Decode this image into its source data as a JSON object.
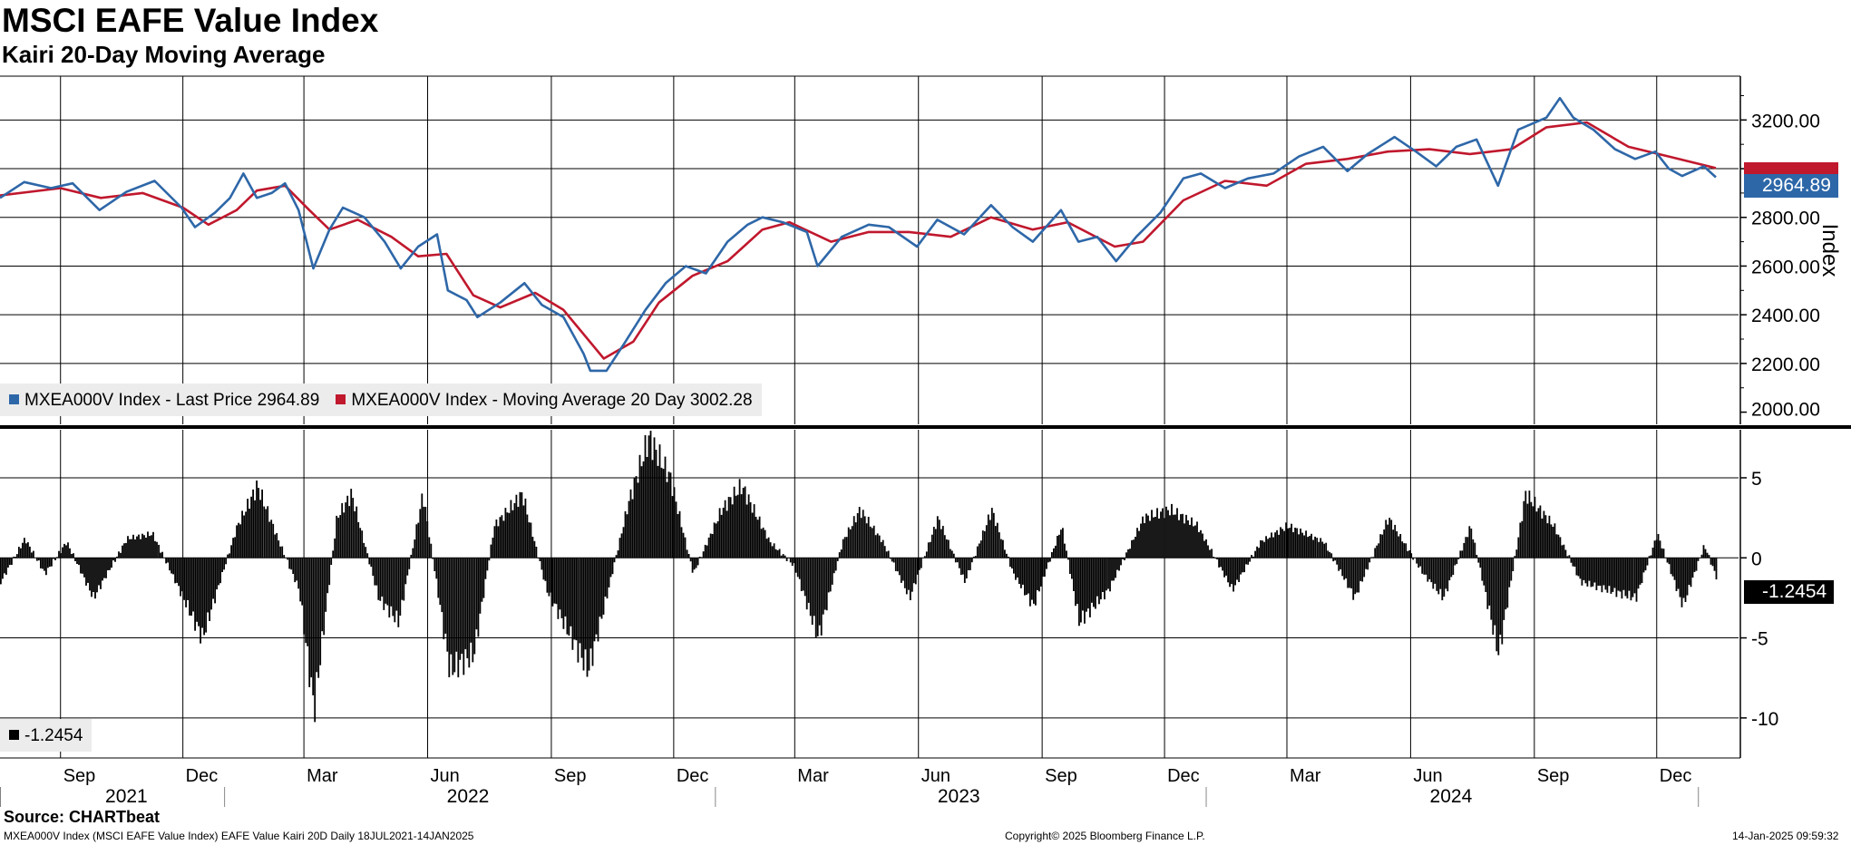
{
  "header": {
    "title": "MSCI EAFE Value Index",
    "subtitle": "Kairi 20-Day Moving Average"
  },
  "colors": {
    "price": "#2e67a8",
    "moving_average": "#c0182d",
    "kairi": "#000000",
    "grid": "#000000",
    "legend_bg": "#ececec"
  },
  "legend_top": {
    "price_label": "MXEA000V Index - Last Price 2964.89",
    "ma_label": "MXEA000V Index - Moving Average 20 Day 3002.28"
  },
  "legend_bottom": {
    "kairi_label": "-1.2454"
  },
  "tags": {
    "price": "2964.89",
    "ma": "3002.28",
    "kairi": "-1.2454"
  },
  "axis": {
    "right_label_top": "Index",
    "top_ticks": [
      "3200.00",
      "3000.00",
      "2800.00",
      "2600.00",
      "2400.00",
      "2200.00",
      "2000.00"
    ],
    "bottom_ticks": [
      "5",
      "0",
      "-5",
      "-10"
    ],
    "month_ticks": [
      "Sep",
      "Dec",
      "Mar",
      "Jun",
      "Sep",
      "Dec",
      "Mar",
      "Jun",
      "Sep",
      "Dec",
      "Mar",
      "Jun",
      "Sep",
      "Dec"
    ],
    "years": [
      "2021",
      "2022",
      "2023",
      "2024"
    ]
  },
  "footer": {
    "source": "Source: CHARTbeat",
    "left": "MXEA000V Index (MSCI EAFE Value Index) EAFE Value Kairi 20D  Daily 18JUL2021-14JAN2025",
    "center": "Copyright© 2025 Bloomberg Finance L.P.",
    "right": "14-Jan-2025 09:59:32"
  },
  "chart_data": [
    {
      "type": "line",
      "title": "MSCI EAFE Value Index",
      "ylabel": "Index",
      "ylim": [
        1950,
        3380
      ],
      "x_range": [
        "2021-07-18",
        "2025-01-14"
      ],
      "series": [
        {
          "name": "MXEA000V Index - Last Price",
          "points": [
            [
              "2021-07-18",
              2880
            ],
            [
              "2021-08-05",
              2945
            ],
            [
              "2021-08-25",
              2920
            ],
            [
              "2021-09-10",
              2940
            ],
            [
              "2021-09-30",
              2830
            ],
            [
              "2021-10-20",
              2905
            ],
            [
              "2021-11-10",
              2950
            ],
            [
              "2021-11-30",
              2840
            ],
            [
              "2021-12-10",
              2760
            ],
            [
              "2021-12-25",
              2820
            ],
            [
              "2022-01-05",
              2880
            ],
            [
              "2022-01-15",
              2980
            ],
            [
              "2022-01-25",
              2880
            ],
            [
              "2022-02-05",
              2900
            ],
            [
              "2022-02-15",
              2940
            ],
            [
              "2022-02-25",
              2830
            ],
            [
              "2022-03-08",
              2590
            ],
            [
              "2022-03-20",
              2750
            ],
            [
              "2022-03-30",
              2840
            ],
            [
              "2022-04-15",
              2800
            ],
            [
              "2022-04-30",
              2700
            ],
            [
              "2022-05-12",
              2590
            ],
            [
              "2022-05-25",
              2680
            ],
            [
              "2022-06-08",
              2730
            ],
            [
              "2022-06-16",
              2500
            ],
            [
              "2022-06-30",
              2460
            ],
            [
              "2022-07-08",
              2390
            ],
            [
              "2022-07-25",
              2450
            ],
            [
              "2022-08-12",
              2530
            ],
            [
              "2022-08-25",
              2440
            ],
            [
              "2022-09-10",
              2390
            ],
            [
              "2022-09-25",
              2240
            ],
            [
              "2022-09-30",
              2170
            ],
            [
              "2022-10-12",
              2170
            ],
            [
              "2022-10-25",
              2280
            ],
            [
              "2022-11-10",
              2420
            ],
            [
              "2022-11-25",
              2530
            ],
            [
              "2022-12-10",
              2600
            ],
            [
              "2022-12-25",
              2570
            ],
            [
              "2023-01-10",
              2700
            ],
            [
              "2023-01-25",
              2770
            ],
            [
              "2023-02-05",
              2800
            ],
            [
              "2023-02-20",
              2780
            ],
            [
              "2023-03-10",
              2740
            ],
            [
              "2023-03-18",
              2600
            ],
            [
              "2023-04-05",
              2720
            ],
            [
              "2023-04-25",
              2770
            ],
            [
              "2023-05-10",
              2760
            ],
            [
              "2023-05-31",
              2680
            ],
            [
              "2023-06-15",
              2790
            ],
            [
              "2023-07-05",
              2730
            ],
            [
              "2023-07-25",
              2850
            ],
            [
              "2023-08-10",
              2760
            ],
            [
              "2023-08-25",
              2700
            ],
            [
              "2023-09-15",
              2830
            ],
            [
              "2023-09-28",
              2700
            ],
            [
              "2023-10-12",
              2720
            ],
            [
              "2023-10-26",
              2620
            ],
            [
              "2023-11-10",
              2720
            ],
            [
              "2023-11-28",
              2820
            ],
            [
              "2023-12-15",
              2960
            ],
            [
              "2023-12-28",
              2980
            ],
            [
              "2024-01-15",
              2920
            ],
            [
              "2024-02-01",
              2960
            ],
            [
              "2024-02-20",
              2980
            ],
            [
              "2024-03-10",
              3050
            ],
            [
              "2024-03-28",
              3090
            ],
            [
              "2024-04-15",
              2990
            ],
            [
              "2024-04-30",
              3060
            ],
            [
              "2024-05-20",
              3130
            ],
            [
              "2024-06-05",
              3070
            ],
            [
              "2024-06-20",
              3010
            ],
            [
              "2024-07-05",
              3090
            ],
            [
              "2024-07-20",
              3120
            ],
            [
              "2024-08-05",
              2930
            ],
            [
              "2024-08-20",
              3160
            ],
            [
              "2024-09-10",
              3210
            ],
            [
              "2024-09-20",
              3290
            ],
            [
              "2024-09-30",
              3210
            ],
            [
              "2024-10-15",
              3160
            ],
            [
              "2024-10-31",
              3080
            ],
            [
              "2024-11-15",
              3040
            ],
            [
              "2024-11-30",
              3070
            ],
            [
              "2024-12-10",
              3000
            ],
            [
              "2024-12-20",
              2970
            ],
            [
              "2025-01-05",
              3010
            ],
            [
              "2025-01-14",
              2964.89
            ]
          ]
        },
        {
          "name": "MXEA000V Index - Moving Average 20 Day",
          "points": [
            [
              "2021-07-18",
              2890
            ],
            [
              "2021-09-01",
              2920
            ],
            [
              "2021-10-01",
              2880
            ],
            [
              "2021-11-01",
              2900
            ],
            [
              "2021-12-01",
              2840
            ],
            [
              "2021-12-20",
              2770
            ],
            [
              "2022-01-10",
              2830
            ],
            [
              "2022-01-25",
              2910
            ],
            [
              "2022-02-15",
              2930
            ],
            [
              "2022-03-05",
              2830
            ],
            [
              "2022-03-20",
              2750
            ],
            [
              "2022-04-10",
              2790
            ],
            [
              "2022-05-05",
              2720
            ],
            [
              "2022-05-25",
              2640
            ],
            [
              "2022-06-15",
              2650
            ],
            [
              "2022-07-05",
              2480
            ],
            [
              "2022-07-25",
              2430
            ],
            [
              "2022-08-20",
              2490
            ],
            [
              "2022-09-10",
              2420
            ],
            [
              "2022-10-10",
              2220
            ],
            [
              "2022-11-01",
              2290
            ],
            [
              "2022-11-20",
              2450
            ],
            [
              "2022-12-15",
              2560
            ],
            [
              "2023-01-10",
              2620
            ],
            [
              "2023-02-05",
              2750
            ],
            [
              "2023-02-25",
              2780
            ],
            [
              "2023-03-28",
              2700
            ],
            [
              "2023-04-25",
              2740
            ],
            [
              "2023-05-25",
              2740
            ],
            [
              "2023-06-25",
              2720
            ],
            [
              "2023-07-25",
              2800
            ],
            [
              "2023-08-25",
              2750
            ],
            [
              "2023-09-20",
              2780
            ],
            [
              "2023-10-25",
              2680
            ],
            [
              "2023-11-15",
              2700
            ],
            [
              "2023-12-15",
              2870
            ],
            [
              "2024-01-15",
              2950
            ],
            [
              "2024-02-15",
              2930
            ],
            [
              "2024-03-15",
              3020
            ],
            [
              "2024-04-15",
              3040
            ],
            [
              "2024-05-15",
              3070
            ],
            [
              "2024-06-15",
              3080
            ],
            [
              "2024-07-15",
              3060
            ],
            [
              "2024-08-15",
              3080
            ],
            [
              "2024-09-10",
              3170
            ],
            [
              "2024-10-10",
              3190
            ],
            [
              "2024-11-10",
              3090
            ],
            [
              "2024-12-10",
              3050
            ],
            [
              "2025-01-14",
              3002.28
            ]
          ]
        }
      ]
    },
    {
      "type": "bar",
      "title": "Kairi 20-Day Moving Average",
      "ylim": [
        -12.5,
        8
      ],
      "x_range": [
        "2021-07-18",
        "2025-01-14"
      ],
      "series": [
        {
          "name": "Kairi 20D",
          "points": [
            [
              "2021-07-18",
              -1.5
            ],
            [
              "2021-08-05",
              1.2
            ],
            [
              "2021-08-20",
              -1.0
            ],
            [
              "2021-09-05",
              1.0
            ],
            [
              "2021-09-25",
              -2.5
            ],
            [
              "2021-10-20",
              1.2
            ],
            [
              "2021-11-08",
              1.5
            ],
            [
              "2021-11-28",
              -2.0
            ],
            [
              "2021-12-15",
              -5.0
            ],
            [
              "2022-01-10",
              2.0
            ],
            [
              "2022-01-25",
              4.5
            ],
            [
              "2022-02-10",
              1.0
            ],
            [
              "2022-02-25",
              -2.0
            ],
            [
              "2022-03-08",
              -9.5
            ],
            [
              "2022-03-25",
              2.5
            ],
            [
              "2022-04-05",
              4.0
            ],
            [
              "2022-04-25",
              -2.5
            ],
            [
              "2022-05-10",
              -4.0
            ],
            [
              "2022-05-28",
              4.0
            ],
            [
              "2022-06-17",
              -7.0
            ],
            [
              "2022-07-05",
              -6.0
            ],
            [
              "2022-07-20",
              2.0
            ],
            [
              "2022-08-10",
              4.0
            ],
            [
              "2022-08-28",
              -2.0
            ],
            [
              "2022-09-28",
              -7.0
            ],
            [
              "2022-10-10",
              -3.0
            ],
            [
              "2022-10-28",
              3.5
            ],
            [
              "2022-11-12",
              7.5
            ],
            [
              "2022-11-28",
              5.0
            ],
            [
              "2022-12-15",
              -1.0
            ],
            [
              "2023-01-05",
              3.0
            ],
            [
              "2023-01-20",
              4.5
            ],
            [
              "2023-02-10",
              1.0
            ],
            [
              "2023-02-28",
              -0.5
            ],
            [
              "2023-03-18",
              -5.0
            ],
            [
              "2023-04-05",
              1.0
            ],
            [
              "2023-04-18",
              3.0
            ],
            [
              "2023-05-05",
              1.0
            ],
            [
              "2023-05-25",
              -2.5
            ],
            [
              "2023-06-15",
              2.5
            ],
            [
              "2023-07-05",
              -1.5
            ],
            [
              "2023-07-25",
              3.0
            ],
            [
              "2023-08-10",
              -1.0
            ],
            [
              "2023-08-25",
              -3.0
            ],
            [
              "2023-09-15",
              2.0
            ],
            [
              "2023-09-28",
              -4.0
            ],
            [
              "2023-10-20",
              -2.0
            ],
            [
              "2023-11-15",
              2.5
            ],
            [
              "2023-12-05",
              3.0
            ],
            [
              "2023-12-25",
              2.0
            ],
            [
              "2024-01-20",
              -2.0
            ],
            [
              "2024-02-10",
              1.0
            ],
            [
              "2024-03-01",
              2.0
            ],
            [
              "2024-03-28",
              1.0
            ],
            [
              "2024-04-20",
              -2.5
            ],
            [
              "2024-05-15",
              2.5
            ],
            [
              "2024-06-10",
              -1.0
            ],
            [
              "2024-06-25",
              -2.5
            ],
            [
              "2024-07-15",
              2.0
            ],
            [
              "2024-08-05",
              -6.0
            ],
            [
              "2024-08-25",
              4.0
            ],
            [
              "2024-09-15",
              2.0
            ],
            [
              "2024-10-05",
              -1.5
            ],
            [
              "2024-10-25",
              -2.0
            ],
            [
              "2024-11-15",
              -2.5
            ],
            [
              "2024-12-01",
              1.5
            ],
            [
              "2024-12-20",
              -3.0
            ],
            [
              "2025-01-05",
              0.8
            ],
            [
              "2025-01-14",
              -1.2454
            ]
          ]
        }
      ]
    }
  ]
}
